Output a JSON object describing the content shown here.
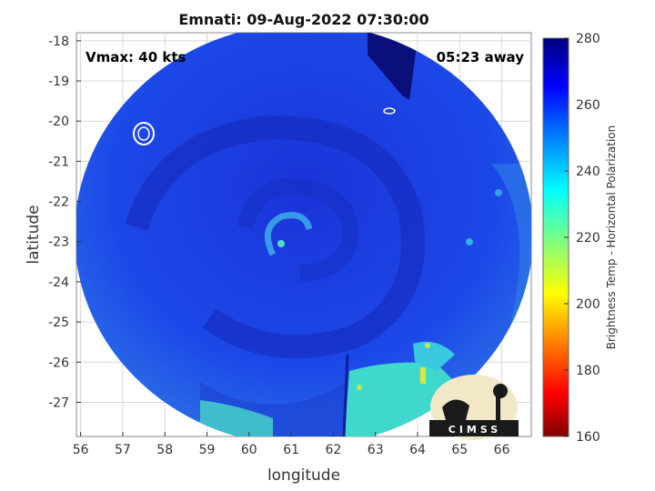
{
  "chart_data": {
    "type": "heatmap",
    "title": "Emnati: 09-Aug-2022 07:30:00",
    "xlabel": "longitude",
    "ylabel": "latitude",
    "xlim": [
      55.9,
      66.7
    ],
    "ylim": [
      -27.85,
      -17.8
    ],
    "xticks": [
      56,
      57,
      58,
      59,
      60,
      61,
      62,
      63,
      64,
      65,
      66
    ],
    "yticks": [
      -18,
      -19,
      -20,
      -21,
      -22,
      -23,
      -24,
      -25,
      -26,
      -27
    ],
    "grid": true,
    "colorbar": {
      "label": "Brightness Temp - Horizontal Polarization",
      "range": [
        160,
        280
      ],
      "ticks": [
        280,
        260,
        240,
        220,
        200,
        180,
        160
      ],
      "colormap": "jet"
    },
    "swath_center": [
      61.4,
      -22.9
    ],
    "storm_center": [
      61.2,
      -23.0
    ],
    "annotations": {
      "vmax": "Vmax: 40 kts",
      "time_offset": "05:23 away"
    },
    "logo_text": "CIMSS"
  },
  "colors": {
    "deep_blue": "#0a0f7a",
    "mid_blue": "#1c3fe0",
    "light_blue": "#2f7fe6",
    "cyan": "#3fd9d0",
    "yellow_green": "#c8e840"
  }
}
